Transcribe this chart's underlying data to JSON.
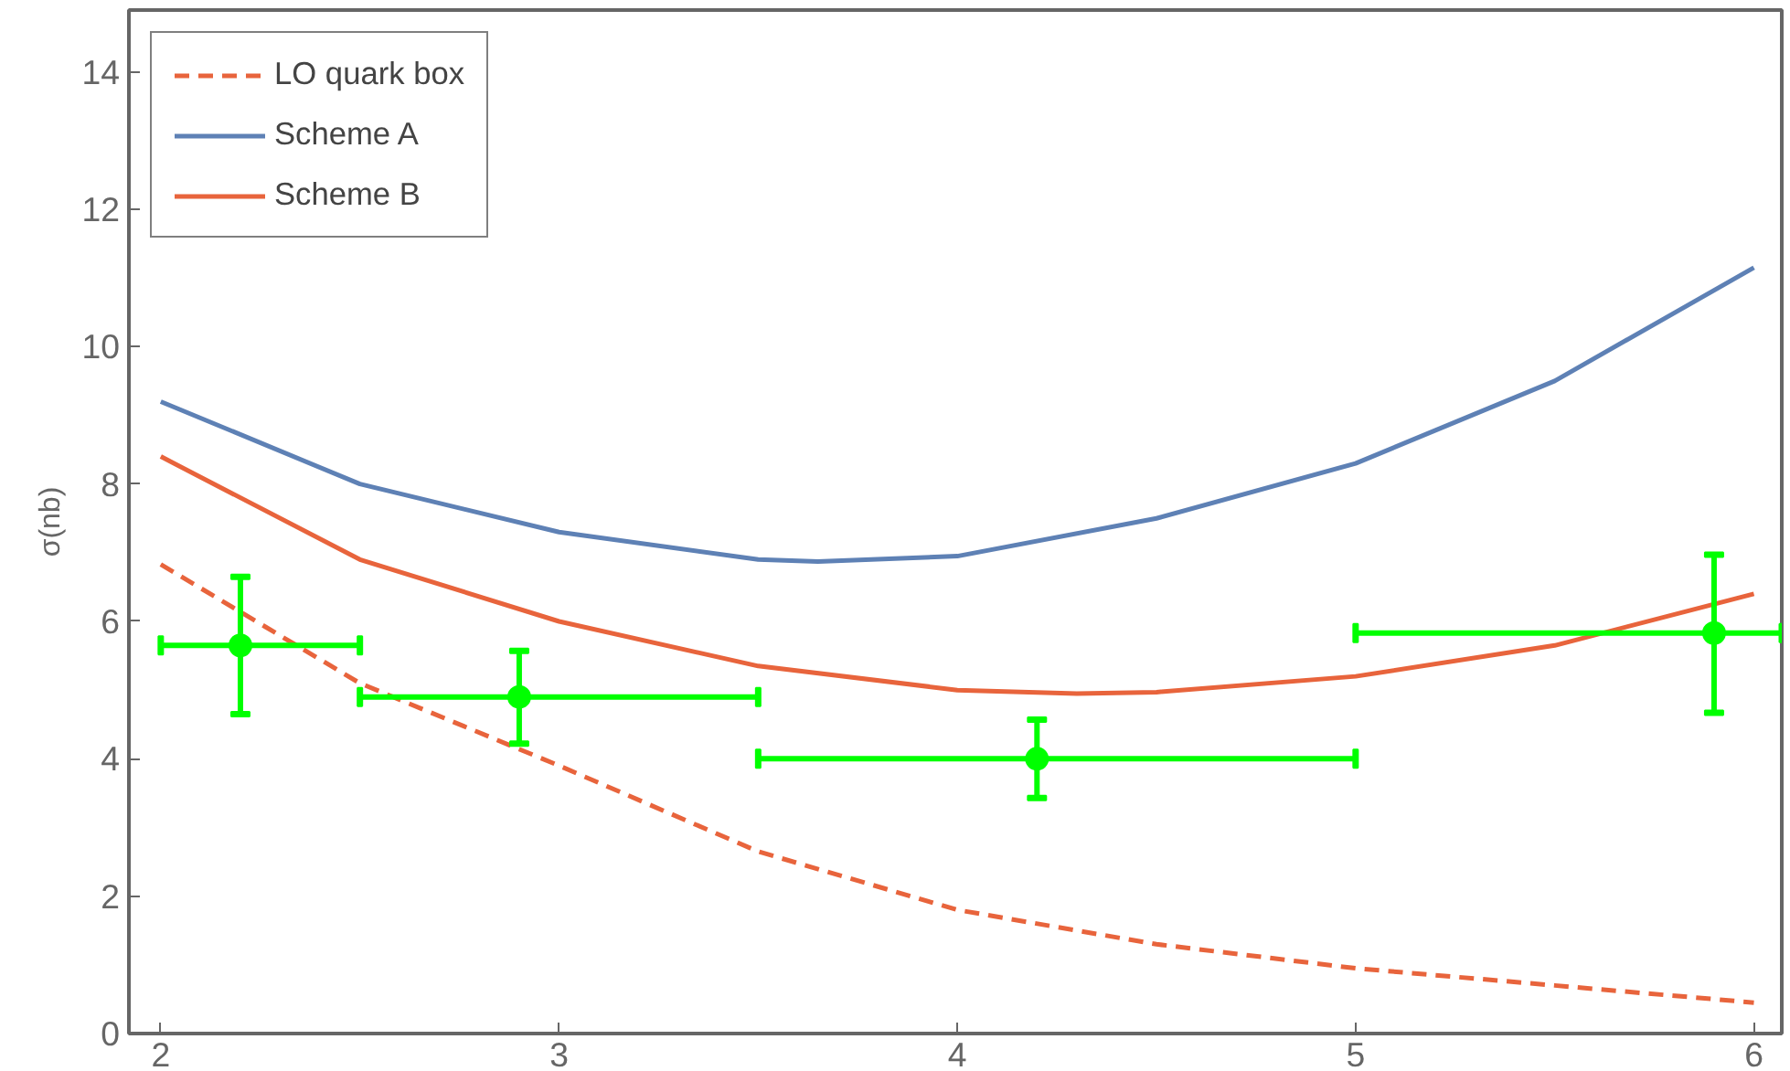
{
  "chart_data": {
    "type": "line",
    "ylabel": "σ(nb)",
    "xlim": [
      1.92,
      6.07
    ],
    "ylim": [
      0,
      14.9
    ],
    "xticks": [
      2,
      3,
      4,
      5,
      6
    ],
    "yticks": [
      0,
      2,
      4,
      6,
      8,
      10,
      12,
      14
    ],
    "grid": false,
    "legend": "top left",
    "marker": "none",
    "series": [
      {
        "name": "LO quark box",
        "color": "#e8643c",
        "line_style": "dashed",
        "x": [
          2,
          2.5,
          3,
          3.5,
          4,
          4.5,
          5,
          5.5,
          6
        ],
        "values": [
          6.83,
          5.1,
          3.9,
          2.65,
          1.8,
          1.3,
          0.95,
          0.7,
          0.45
        ]
      },
      {
        "name": "Scheme A",
        "color": "#5e81b5",
        "line_style": "solid",
        "x": [
          2,
          2.5,
          3,
          3.5,
          3.65,
          4,
          4.5,
          5,
          5.5,
          6
        ],
        "values": [
          9.2,
          8.0,
          7.3,
          6.9,
          6.87,
          6.95,
          7.5,
          8.3,
          9.5,
          11.15
        ]
      },
      {
        "name": "Scheme B",
        "color": "#e8643c",
        "line_style": "solid",
        "x": [
          2,
          2.5,
          3,
          3.5,
          4,
          4.3,
          4.5,
          5,
          5.5,
          6
        ],
        "values": [
          8.4,
          6.9,
          6.0,
          5.35,
          5.0,
          4.95,
          4.97,
          5.2,
          5.65,
          6.4
        ]
      },
      {
        "type": "scatter",
        "marker": "circle",
        "color": "#00ff00",
        "x": [
          2.2,
          2.9,
          4.2,
          5.9
        ],
        "values": [
          5.65,
          4.9,
          4.0,
          5.83
        ],
        "errors": [
          [
            4.65,
            6.65
          ],
          [
            4.22,
            5.57
          ],
          [
            3.43,
            4.57
          ],
          [
            4.67,
            6.97
          ]
        ],
        "xerrors": [
          [
            2,
            2.5
          ],
          [
            2.5,
            3.5
          ],
          [
            3.5,
            5
          ],
          [
            5,
            6.07
          ]
        ]
      }
    ]
  }
}
